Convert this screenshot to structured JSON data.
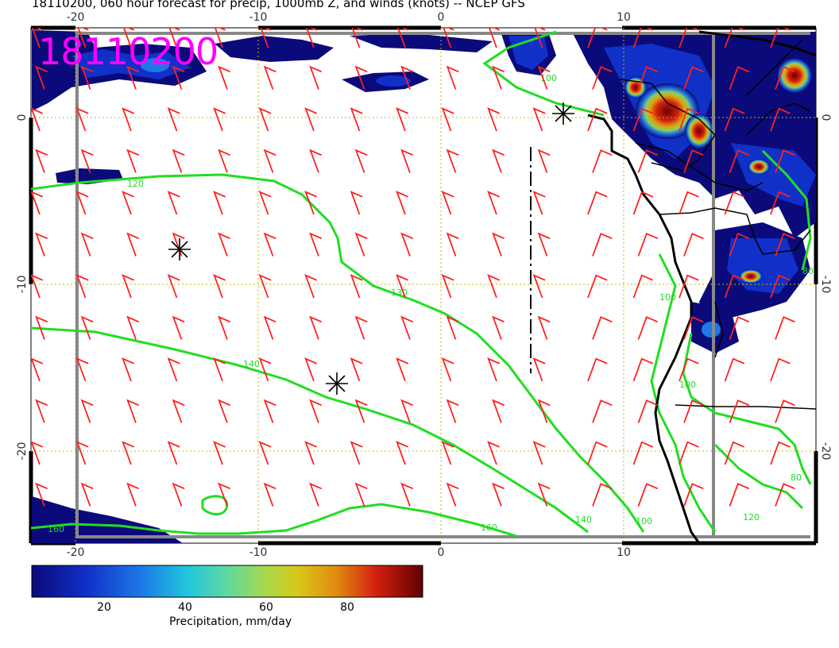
{
  "header": {
    "title": "18110200, 060 hour forecast for precip, 1000mb Z, and winds (knots) -- NCEP GFS",
    "stamp": "18110200"
  },
  "map": {
    "lon_ticks_top": [
      "-20",
      "-10",
      "0",
      "10"
    ],
    "lon_ticks_bottom": [
      "-20",
      "-10",
      "0",
      "10"
    ],
    "lat_ticks": [
      "0",
      "-10",
      "-20"
    ],
    "contour_labels": [
      "120",
      "130",
      "140",
      "140",
      "160",
      "160",
      "100",
      "100",
      "100",
      "100",
      "120",
      "80",
      "80"
    ],
    "colors": {
      "coast": "#000000",
      "contour": "#22dd22",
      "wind_barb": "#ff2020",
      "grid": "#c8b400",
      "stamp": "#ff00ff"
    }
  },
  "colorbar": {
    "ticks": [
      "20",
      "40",
      "60",
      "80"
    ],
    "label": "Precipitation, mm/day",
    "colors": [
      "#0a0a7a",
      "#1030c8",
      "#1e78e6",
      "#20c8dc",
      "#60d8a0",
      "#a8d84a",
      "#d8c818",
      "#e08a10",
      "#d42010",
      "#600000"
    ]
  }
}
